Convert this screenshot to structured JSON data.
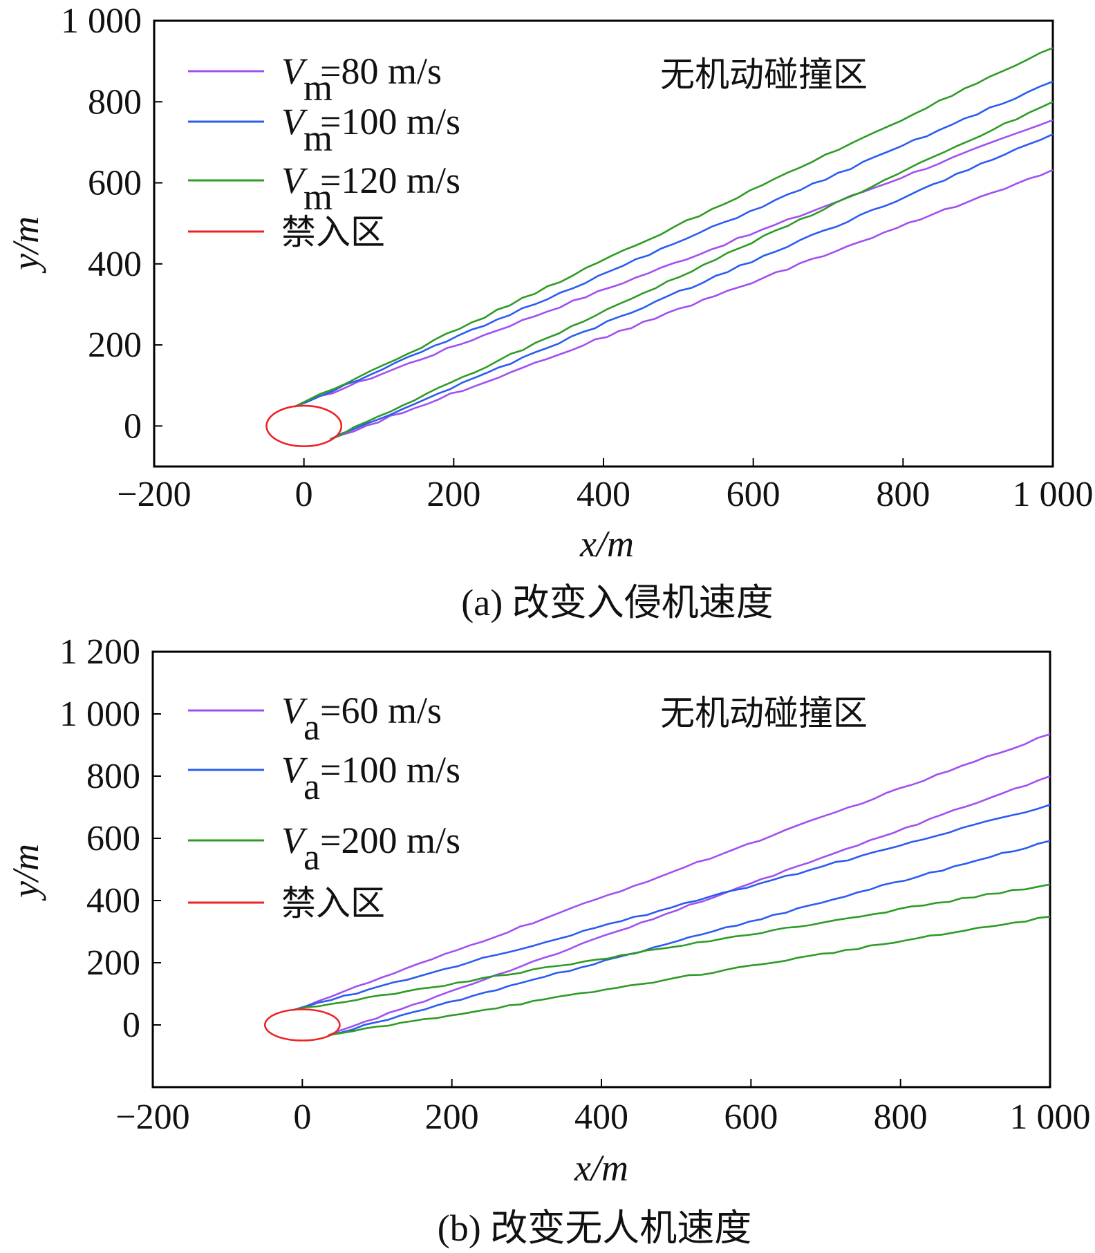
{
  "chart_data": [
    {
      "type": "line",
      "caption": "(a) 改变入侵机速度",
      "xlabel": "x/m",
      "ylabel": "y/m",
      "xlim": [
        -200,
        1000
      ],
      "ylim": [
        -100,
        1000
      ],
      "xticks": [
        -200,
        0,
        200,
        400,
        600,
        800,
        1000
      ],
      "xtick_labels": [
        "−200",
        "0",
        "200",
        "400",
        "600",
        "800",
        "1 000"
      ],
      "yticks": [
        0,
        200,
        400,
        600,
        800,
        1000
      ],
      "ytick_labels": [
        "0",
        "200",
        "400",
        "600",
        "800",
        "1 000"
      ],
      "annotation": "无机动碰撞区",
      "legend": [
        {
          "prefix": "V",
          "sub": "m",
          "rest": "=80 m/s",
          "color": "#a050f0"
        },
        {
          "prefix": "V",
          "sub": "m",
          "rest": "=100 m/s",
          "color": "#2a5cf0"
        },
        {
          "prefix": "V",
          "sub": "m",
          "rest": "=120 m/s",
          "color": "#2e9b25"
        },
        {
          "prefix": "",
          "sub": "",
          "rest": "禁入区",
          "color": "#ee2222"
        }
      ],
      "series": [
        {
          "name": "Vm=80 m/s upper",
          "color": "#a050f0",
          "x": [
            -12,
            1000
          ],
          "y": [
            48,
            755
          ]
        },
        {
          "name": "Vm=80 m/s lower",
          "color": "#a050f0",
          "x": [
            35,
            1000
          ],
          "y": [
            -33,
            632
          ]
        },
        {
          "name": "Vm=100 m/s upper",
          "color": "#2a5cf0",
          "x": [
            -12,
            1000
          ],
          "y": [
            48,
            850
          ]
        },
        {
          "name": "Vm=100 m/s lower",
          "color": "#2a5cf0",
          "x": [
            35,
            1000
          ],
          "y": [
            -33,
            720
          ]
        },
        {
          "name": "Vm=120 m/s upper",
          "color": "#2e9b25",
          "x": [
            -12,
            1000
          ],
          "y": [
            48,
            933
          ]
        },
        {
          "name": "Vm=120 m/s lower",
          "color": "#2e9b25",
          "x": [
            35,
            1000
          ],
          "y": [
            -33,
            800
          ]
        }
      ],
      "no_entry_zone": {
        "cx": 0,
        "cy": 0,
        "rx": 50,
        "ry": 50,
        "color": "#ee2222"
      }
    },
    {
      "type": "line",
      "caption": "(b) 改变无人机速度",
      "xlabel": "x/m",
      "ylabel": "y/m",
      "xlim": [
        -200,
        1000
      ],
      "ylim": [
        -200,
        1200
      ],
      "xticks": [
        -200,
        0,
        200,
        400,
        600,
        800,
        1000
      ],
      "xtick_labels": [
        "−200",
        "0",
        "200",
        "400",
        "600",
        "800",
        "1 000"
      ],
      "yticks": [
        0,
        200,
        400,
        600,
        800,
        1000,
        1200
      ],
      "ytick_labels": [
        "0",
        "200",
        "400",
        "600",
        "800",
        "1 000",
        "1 200"
      ],
      "annotation": "无机动碰撞区",
      "legend": [
        {
          "prefix": "V",
          "sub": "a",
          "rest": "=60 m/s",
          "color": "#a050f0"
        },
        {
          "prefix": "V",
          "sub": "a",
          "rest": "=100 m/s",
          "color": "#2a5cf0"
        },
        {
          "prefix": "V",
          "sub": "a",
          "rest": "=200 m/s",
          "color": "#2e9b25"
        },
        {
          "prefix": "",
          "sub": "",
          "rest": "禁入区",
          "color": "#ee2222"
        }
      ],
      "series": [
        {
          "name": "Va=60 m/s upper",
          "color": "#a050f0",
          "x": [
            -12,
            1000
          ],
          "y": [
            48,
            935
          ]
        },
        {
          "name": "Va=60 m/s lower",
          "color": "#a050f0",
          "x": [
            35,
            1000
          ],
          "y": [
            -33,
            800
          ]
        },
        {
          "name": "Va=100 m/s upper",
          "color": "#2a5cf0",
          "x": [
            -12,
            1000
          ],
          "y": [
            48,
            708
          ]
        },
        {
          "name": "Va=100 m/s lower",
          "color": "#2a5cf0",
          "x": [
            35,
            1000
          ],
          "y": [
            -33,
            592
          ]
        },
        {
          "name": "Va=200 m/s upper",
          "color": "#2e9b25",
          "x": [
            -12,
            1000
          ],
          "y": [
            48,
            452
          ]
        },
        {
          "name": "Va=200 m/s lower",
          "color": "#2e9b25",
          "x": [
            35,
            1000
          ],
          "y": [
            -33,
            348
          ]
        }
      ],
      "no_entry_zone": {
        "cx": 0,
        "cy": 0,
        "rx": 50,
        "ry": 50,
        "color": "#ee2222"
      }
    }
  ]
}
